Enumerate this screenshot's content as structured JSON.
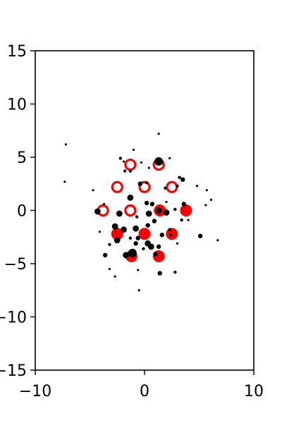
{
  "chart_data": {
    "type": "scatter",
    "title": "",
    "xlabel": "",
    "ylabel": "",
    "xlim": [
      -10,
      10
    ],
    "ylim": [
      -15,
      15
    ],
    "x_ticks": [
      -10,
      0,
      10
    ],
    "x_tick_labels": [
      "−10",
      "0",
      "10"
    ],
    "y_ticks": [
      -15,
      -10,
      -5,
      0,
      5,
      10,
      15
    ],
    "y_tick_labels": [
      "−15",
      "−10",
      "−5",
      "0",
      "5",
      "10",
      "15"
    ],
    "grid": false,
    "legend": "none",
    "colors": {
      "black_points": "#000000",
      "red_points": "#ff0000",
      "frame": "#000000"
    },
    "series": [
      {
        "marker": "filled-dot",
        "color": "#000000",
        "points": [
          {
            "x": -7.2,
            "y": 6.2,
            "s": 1
          },
          {
            "x": -7.3,
            "y": 2.7,
            "s": 1
          },
          {
            "x": 1.3,
            "y": 7.2,
            "s": 1
          },
          {
            "x": -1.0,
            "y": 5.7,
            "s": 1
          },
          {
            "x": -2.2,
            "y": 4.9,
            "s": 2
          },
          {
            "x": 2.3,
            "y": 4.9,
            "s": 1
          },
          {
            "x": 1.3,
            "y": 4.6,
            "s": 5
          },
          {
            "x": -1.9,
            "y": 4.6,
            "s": 1
          },
          {
            "x": -0.3,
            "y": 4.5,
            "s": 1
          },
          {
            "x": -1.8,
            "y": 3.7,
            "s": 2
          },
          {
            "x": -1.3,
            "y": 3.7,
            "s": 2
          },
          {
            "x": 0.4,
            "y": 4.0,
            "s": 1
          },
          {
            "x": 3.2,
            "y": 3.1,
            "s": 2
          },
          {
            "x": 3.5,
            "y": 2.9,
            "s": 3
          },
          {
            "x": -0.4,
            "y": 2.5,
            "s": 3
          },
          {
            "x": 0.2,
            "y": 2.6,
            "s": 2
          },
          {
            "x": 3.0,
            "y": 2.3,
            "s": 2
          },
          {
            "x": 4.8,
            "y": 2.3,
            "s": 1
          },
          {
            "x": 5.7,
            "y": 1.9,
            "s": 1
          },
          {
            "x": -4.7,
            "y": 1.9,
            "s": 1
          },
          {
            "x": -1.3,
            "y": 1.2,
            "s": 4
          },
          {
            "x": 0.2,
            "y": 0.7,
            "s": 3
          },
          {
            "x": 0.7,
            "y": 0.6,
            "s": 3
          },
          {
            "x": 2.0,
            "y": 0.8,
            "s": 1
          },
          {
            "x": 3.6,
            "y": 0.6,
            "s": 3
          },
          {
            "x": 6.1,
            "y": 1.0,
            "s": 1
          },
          {
            "x": 5.6,
            "y": 0.5,
            "s": 1
          },
          {
            "x": -4.3,
            "y": -0.1,
            "s": 4
          },
          {
            "x": -2.3,
            "y": -0.3,
            "s": 4
          },
          {
            "x": 0.4,
            "y": -0.3,
            "s": 4
          },
          {
            "x": 1.3,
            "y": 0.0,
            "s": 4
          },
          {
            "x": 2.0,
            "y": -0.2,
            "s": 4
          },
          {
            "x": 2.8,
            "y": 0.1,
            "s": 2
          },
          {
            "x": -0.7,
            "y": -0.6,
            "s": 2
          },
          {
            "x": 0.9,
            "y": -1.0,
            "s": 3
          },
          {
            "x": 3.4,
            "y": -0.9,
            "s": 2
          },
          {
            "x": 4.0,
            "y": -0.9,
            "s": 1
          },
          {
            "x": -2.7,
            "y": -1.5,
            "s": 4
          },
          {
            "x": -1.9,
            "y": -1.8,
            "s": 4
          },
          {
            "x": -0.8,
            "y": -1.7,
            "s": 4
          },
          {
            "x": 0.3,
            "y": -1.4,
            "s": 3
          },
          {
            "x": 2.3,
            "y": -1.8,
            "s": 2
          },
          {
            "x": -4.1,
            "y": -2.0,
            "s": 1
          },
          {
            "x": -2.5,
            "y": -2.8,
            "s": 4
          },
          {
            "x": -1.3,
            "y": -2.6,
            "s": 2
          },
          {
            "x": -0.6,
            "y": -2.6,
            "s": 3
          },
          {
            "x": 1.6,
            "y": -2.3,
            "s": 3
          },
          {
            "x": 2.4,
            "y": -2.3,
            "s": 2
          },
          {
            "x": 5.1,
            "y": -2.4,
            "s": 3
          },
          {
            "x": 6.7,
            "y": -2.8,
            "s": 1
          },
          {
            "x": -3.2,
            "y": -3.2,
            "s": 2
          },
          {
            "x": -0.8,
            "y": -3.1,
            "s": 3
          },
          {
            "x": 0.3,
            "y": -3.1,
            "s": 4
          },
          {
            "x": 0.6,
            "y": -3.4,
            "s": 4
          },
          {
            "x": -0.1,
            "y": -3.6,
            "s": 2
          },
          {
            "x": 1.3,
            "y": -3.4,
            "s": 3
          },
          {
            "x": 3.0,
            "y": -3.1,
            "s": 1
          },
          {
            "x": -3.6,
            "y": -4.2,
            "s": 3
          },
          {
            "x": -1.7,
            "y": -4.2,
            "s": 4
          },
          {
            "x": -1.1,
            "y": -4.0,
            "s": 5
          },
          {
            "x": 1.0,
            "y": -4.1,
            "s": 3
          },
          {
            "x": -3.2,
            "y": -5.5,
            "s": 1
          },
          {
            "x": -0.6,
            "y": -5.6,
            "s": 1
          },
          {
            "x": 1.4,
            "y": -5.9,
            "s": 3
          },
          {
            "x": 2.8,
            "y": -5.8,
            "s": 2
          },
          {
            "x": -2.7,
            "y": -6.2,
            "s": 1
          },
          {
            "x": -0.5,
            "y": -7.5,
            "s": 1
          },
          {
            "x": -3.7,
            "y": 0.6,
            "s": 1
          },
          {
            "x": 1.9,
            "y": 2.1,
            "s": 2
          }
        ]
      },
      {
        "marker": "filled-circle",
        "color": "#ff0000",
        "points": [
          {
            "x": 1.4,
            "y": 0.0
          },
          {
            "x": 3.8,
            "y": 0.0
          },
          {
            "x": 0.0,
            "y": -2.2
          },
          {
            "x": 2.5,
            "y": -2.2
          },
          {
            "x": -2.5,
            "y": -2.2
          },
          {
            "x": -1.2,
            "y": -4.3
          },
          {
            "x": 1.3,
            "y": -4.3
          }
        ]
      },
      {
        "marker": "hollow-circle",
        "color": "#ff0000",
        "points": [
          {
            "x": -1.3,
            "y": 4.3
          },
          {
            "x": 1.3,
            "y": 4.3
          },
          {
            "x": -2.5,
            "y": 2.2
          },
          {
            "x": 0.0,
            "y": 2.2
          },
          {
            "x": 2.5,
            "y": 2.2
          },
          {
            "x": -3.8,
            "y": 0.0
          },
          {
            "x": -1.3,
            "y": 0.0
          }
        ]
      }
    ]
  }
}
